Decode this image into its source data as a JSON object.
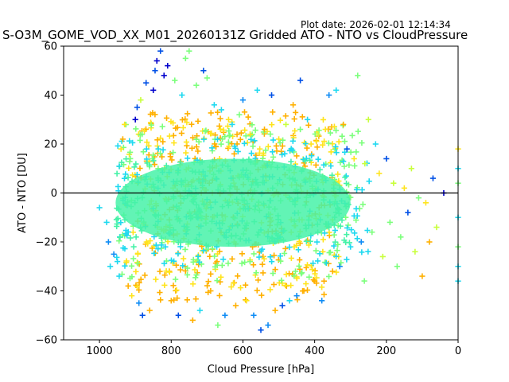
{
  "plot_date": "Plot date: 2026-02-01 12:14:34",
  "chart_data": {
    "type": "scatter",
    "title": "S-O3M_GOME_VOD_XX_M01_20260131Z Gridded ATO - NTO vs CloudPressure",
    "xlabel": "Cloud Pressure [hPa]",
    "ylabel": "ATO - NTO [DU]",
    "xlim": [
      1100,
      0
    ],
    "ylim": [
      -60,
      60
    ],
    "x_reversed": true,
    "xticks": [
      1000,
      800,
      600,
      400,
      200,
      0
    ],
    "yticks": [
      -60,
      -40,
      -20,
      0,
      20,
      40,
      60
    ],
    "marker": "+",
    "grid": false,
    "reference_line": {
      "y": 0,
      "color": "#000000"
    },
    "colors": {
      "dense_core": "#46f2a8",
      "cyan": "#1fd9f0",
      "sky_blue": "#0f8cf5",
      "blue": "#0050e6",
      "dark_blue": "#0000cc",
      "light_green": "#7cff7c",
      "yellow_green": "#c8ff3c",
      "yellow": "#ffe41e",
      "orange": "#ffb000"
    },
    "points": [
      [
        1000,
        -6
      ],
      [
        980,
        -12
      ],
      [
        975,
        -20
      ],
      [
        970,
        -30
      ],
      [
        960,
        -25
      ],
      [
        950,
        -28
      ],
      [
        945,
        -34
      ],
      [
        940,
        18
      ],
      [
        935,
        22
      ],
      [
        930,
        28
      ],
      [
        920,
        -38
      ],
      [
        910,
        -42
      ],
      [
        900,
        30
      ],
      [
        895,
        35
      ],
      [
        890,
        -45
      ],
      [
        885,
        38
      ],
      [
        880,
        -50
      ],
      [
        870,
        45
      ],
      [
        860,
        -48
      ],
      [
        850,
        42
      ],
      [
        845,
        50
      ],
      [
        840,
        54
      ],
      [
        830,
        58
      ],
      [
        820,
        48
      ],
      [
        810,
        52
      ],
      [
        800,
        -44
      ],
      [
        790,
        46
      ],
      [
        780,
        -50
      ],
      [
        770,
        40
      ],
      [
        760,
        55
      ],
      [
        750,
        58
      ],
      [
        740,
        -52
      ],
      [
        730,
        44
      ],
      [
        720,
        -48
      ],
      [
        710,
        50
      ],
      [
        700,
        47
      ],
      [
        690,
        -40
      ],
      [
        680,
        36
      ],
      [
        670,
        -54
      ],
      [
        660,
        34
      ],
      [
        650,
        -50
      ],
      [
        640,
        30
      ],
      [
        630,
        28
      ],
      [
        620,
        -46
      ],
      [
        610,
        32
      ],
      [
        600,
        38
      ],
      [
        590,
        -44
      ],
      [
        580,
        24
      ],
      [
        570,
        -50
      ],
      [
        560,
        42
      ],
      [
        550,
        -56
      ],
      [
        540,
        26
      ],
      [
        530,
        -54
      ],
      [
        520,
        40
      ],
      [
        510,
        -48
      ],
      [
        500,
        22
      ],
      [
        490,
        -46
      ],
      [
        480,
        28
      ],
      [
        470,
        -44
      ],
      [
        460,
        36
      ],
      [
        450,
        -42
      ],
      [
        440,
        46
      ],
      [
        430,
        -40
      ],
      [
        420,
        30
      ],
      [
        410,
        20
      ],
      [
        400,
        -36
      ],
      [
        390,
        24
      ],
      [
        380,
        -44
      ],
      [
        370,
        26
      ],
      [
        360,
        40
      ],
      [
        350,
        -32
      ],
      [
        340,
        42
      ],
      [
        330,
        -30
      ],
      [
        320,
        28
      ],
      [
        310,
        18
      ],
      [
        300,
        -22
      ],
      [
        290,
        14
      ],
      [
        280,
        48
      ],
      [
        270,
        -20
      ],
      [
        260,
        12
      ],
      [
        250,
        30
      ],
      [
        240,
        -16
      ],
      [
        230,
        20
      ],
      [
        220,
        8
      ],
      [
        210,
        -26
      ],
      [
        200,
        14
      ],
      [
        190,
        -12
      ],
      [
        180,
        4
      ],
      [
        170,
        -30
      ],
      [
        160,
        -18
      ],
      [
        150,
        2
      ],
      [
        140,
        -8
      ],
      [
        130,
        10
      ],
      [
        120,
        -24
      ],
      [
        110,
        -2
      ],
      [
        100,
        -34
      ],
      [
        90,
        -4
      ],
      [
        80,
        -20
      ],
      [
        70,
        6
      ],
      [
        60,
        -14
      ],
      [
        40,
        0
      ],
      [
        0,
        18
      ],
      [
        0,
        10
      ],
      [
        0,
        -10
      ],
      [
        0,
        -22
      ],
      [
        0,
        -30
      ],
      [
        0,
        -36
      ],
      [
        0,
        4
      ]
    ],
    "point_color_keys": [
      "cyan",
      "cyan",
      "sky_blue",
      "cyan",
      "sky_blue",
      "cyan",
      "cyan",
      "yellow",
      "orange",
      "yellow",
      "orange",
      "yellow",
      "dark_blue",
      "blue",
      "sky_blue",
      "yellow_green",
      "blue",
      "blue",
      "orange",
      "dark_blue",
      "blue",
      "dark_blue",
      "blue",
      "dark_blue",
      "dark_blue",
      "orange",
      "light_green",
      "blue",
      "cyan",
      "light_green",
      "light_green",
      "orange",
      "light_green",
      "cyan",
      "blue",
      "light_green",
      "orange",
      "cyan",
      "light_green",
      "cyan",
      "sky_blue",
      "yellow",
      "cyan",
      "orange",
      "light_green",
      "sky_blue",
      "yellow",
      "yellow",
      "sky_blue",
      "cyan",
      "blue",
      "orange",
      "sky_blue",
      "blue",
      "orange",
      "yellow",
      "blue",
      "yellow_green",
      "cyan",
      "orange",
      "sky_blue",
      "blue",
      "orange",
      "cyan",
      "yellow",
      "orange",
      "yellow_green",
      "sky_blue",
      "yellow",
      "sky_blue",
      "orange",
      "cyan",
      "sky_blue",
      "orange",
      "blue",
      "cyan",
      "yellow",
      "light_green",
      "sky_blue",
      "yellow_green",
      "yellow_green",
      "light_green",
      "cyan",
      "yellow",
      "yellow_green",
      "blue",
      "light_green",
      "yellow_green",
      "light_green",
      "light_green",
      "yellow",
      "blue",
      "yellow_green",
      "yellow_green",
      "light_green",
      "orange",
      "yellow",
      "orange",
      "blue",
      "yellow_green",
      "dark_blue",
      "yellow",
      "cyan",
      "cyan",
      "light_green",
      "cyan",
      "cyan",
      "light_green"
    ],
    "density_regions": [
      {
        "x_range": [
          955,
          300
        ],
        "y_range": [
          -22,
          14
        ],
        "color_key": "dense_core"
      },
      {
        "x_range": [
          955,
          240
        ],
        "y_range": [
          -30,
          22
        ],
        "color_key": "cyan"
      },
      {
        "x_range": [
          950,
          260
        ],
        "y_range": [
          -36,
          28
        ],
        "color_key": "light_green"
      },
      {
        "x_range": [
          930,
          330
        ],
        "y_range": [
          -40,
          30
        ],
        "color_key": "yellow"
      },
      {
        "x_range": [
          900,
          350
        ],
        "y_range": [
          -44,
          34
        ],
        "color_key": "orange"
      }
    ]
  }
}
